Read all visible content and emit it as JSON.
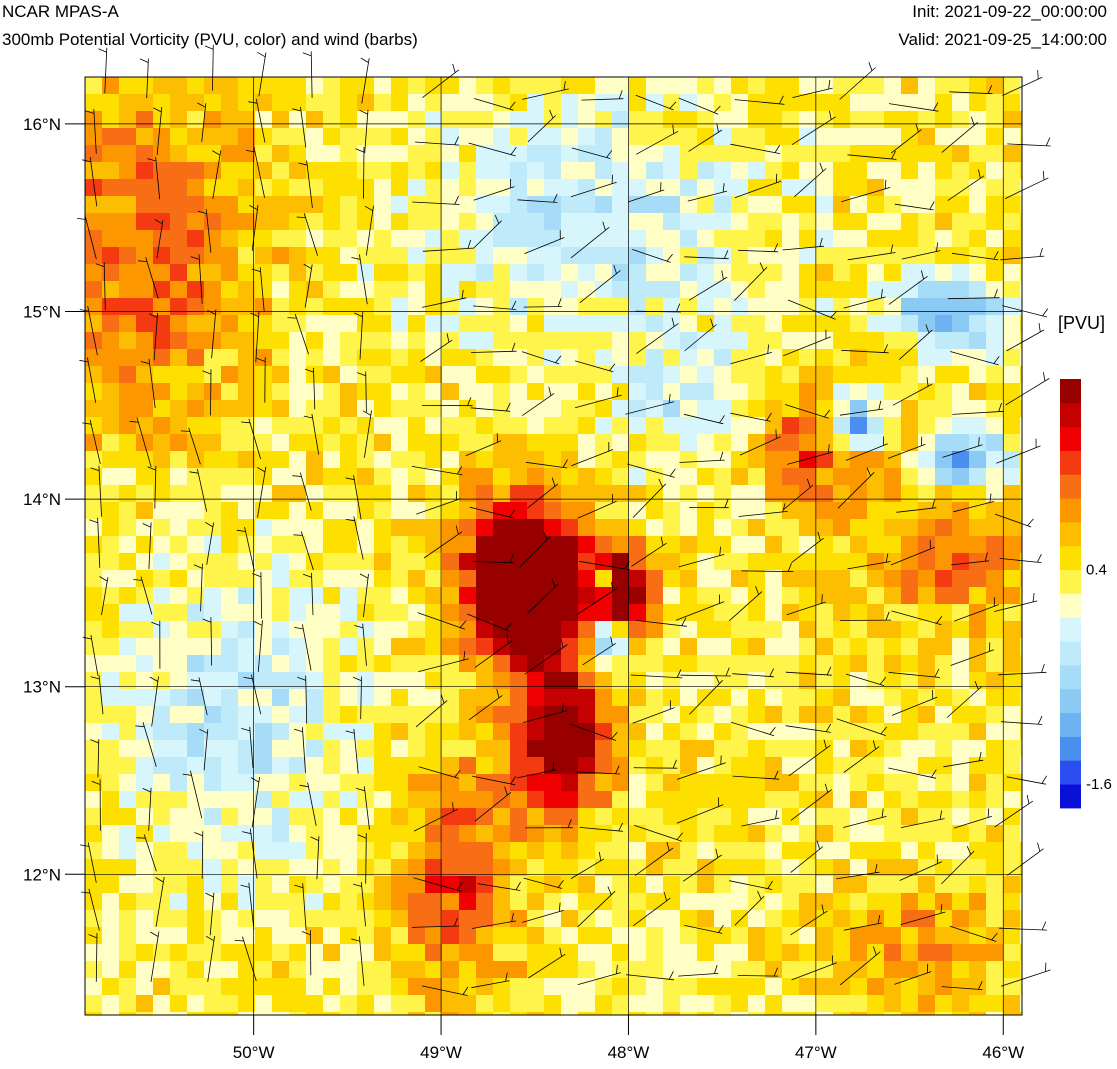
{
  "header": {
    "model": "NCAR MPAS-A",
    "description": "300mb Potential Vorticity (PVU, color) and wind (barbs)",
    "init": "Init: 2021-09-22_00:00:00",
    "valid": "Valid: 2021-09-25_14:00:00"
  },
  "map": {
    "lon_range": [
      -50.9,
      -45.9
    ],
    "lat_range": [
      11.25,
      16.25
    ],
    "lat_ticks": [
      {
        "value": 16,
        "label": "16°N"
      },
      {
        "value": 15,
        "label": "15°N"
      },
      {
        "value": 14,
        "label": "14°N"
      },
      {
        "value": 13,
        "label": "13°N"
      },
      {
        "value": 12,
        "label": "12°N"
      }
    ],
    "lon_ticks": [
      {
        "value": -50,
        "label": "50°W"
      },
      {
        "value": -49,
        "label": "49°W"
      },
      {
        "value": -48,
        "label": "48°W"
      },
      {
        "value": -47,
        "label": "47°W"
      },
      {
        "value": -46,
        "label": "46°W"
      }
    ],
    "grid": true
  },
  "colorbar": {
    "unit_label": "[PVU]",
    "colors": [
      "#0a10d8",
      "#2a4ef0",
      "#4a8ef0",
      "#6eb2f2",
      "#8ccaf6",
      "#a6dcf8",
      "#bfeafa",
      "#d6f6fb",
      "#fffec4",
      "#fff44a",
      "#fde000",
      "#fdbd00",
      "#fd9700",
      "#f86e14",
      "#f43a10",
      "#f00000",
      "#c40000",
      "#980000"
    ],
    "tick_labels": [
      {
        "label": "0.4",
        "boundary": 10
      },
      {
        "label": "-1.6",
        "boundary": 1
      }
    ]
  }
}
